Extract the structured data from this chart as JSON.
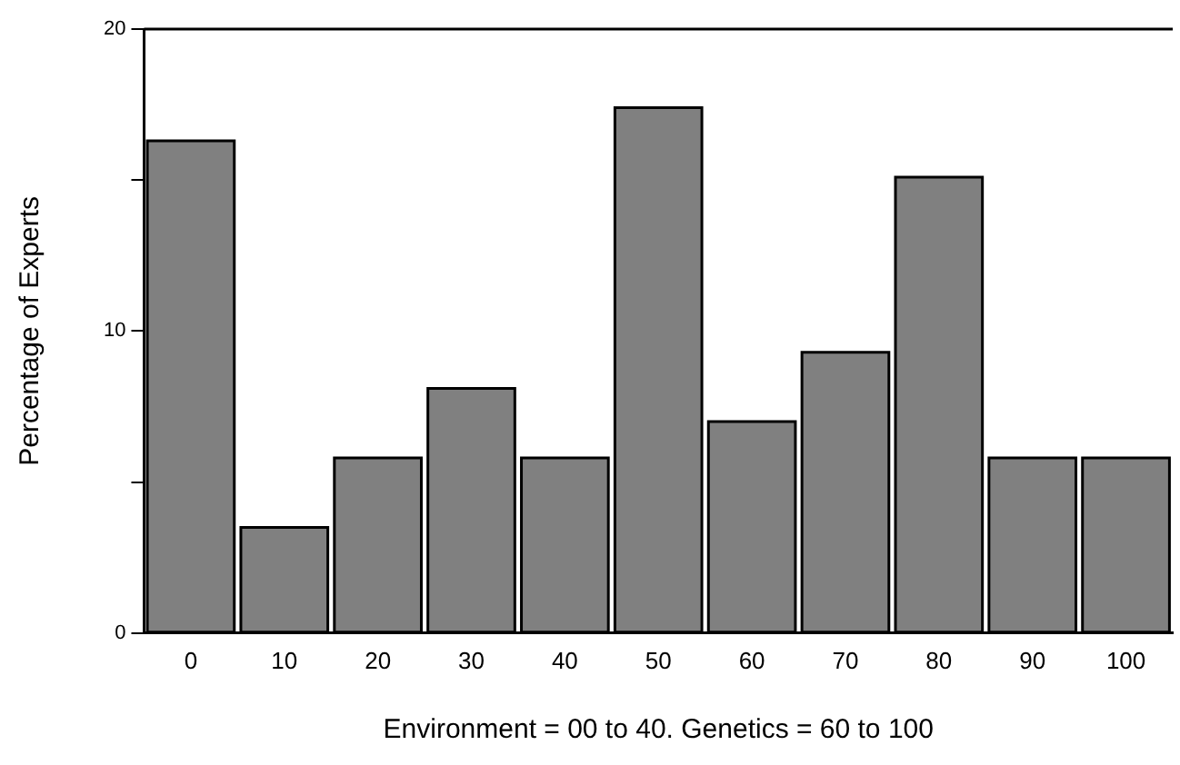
{
  "chart_data": {
    "type": "bar",
    "xlabel": "Environment = 00 to 40. Genetics = 60 to 100",
    "ylabel": "Percentage of Experts",
    "categories": [
      "0",
      "10",
      "20",
      "30",
      "40",
      "50",
      "60",
      "70",
      "80",
      "90",
      "100"
    ],
    "values": [
      16.3,
      3.5,
      5.8,
      8.1,
      5.8,
      17.4,
      7.0,
      9.3,
      15.1,
      5.8,
      5.8
    ],
    "color": "#808080",
    "ylim": [
      0,
      20
    ],
    "yticks": [
      0,
      {
        "value": 5,
        "label": null
      },
      10,
      {
        "value": 15,
        "label": null
      },
      20
    ],
    "grid": false,
    "legend": false
  }
}
